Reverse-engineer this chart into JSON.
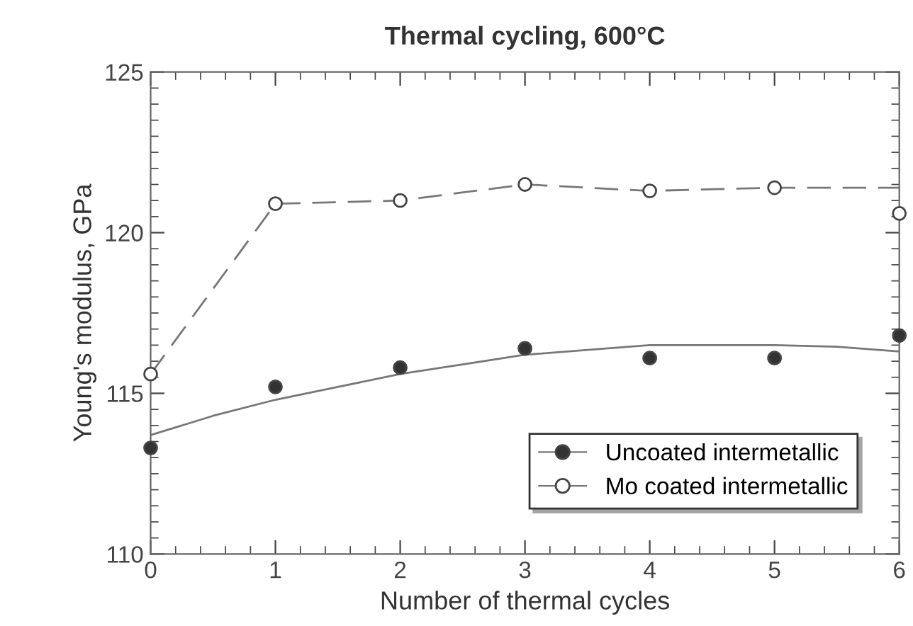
{
  "chart_data": {
    "type": "scatter",
    "title": "Thermal cycling, 600°C",
    "xlabel": "Number of thermal cycles",
    "ylabel": "Young's modulus, GPa",
    "x": [
      0,
      1,
      2,
      3,
      4,
      5,
      6
    ],
    "series": [
      {
        "name": "Uncoated intermetallic",
        "color": "#333333",
        "marker": "circle",
        "values": [
          113.3,
          115.2,
          115.8,
          116.4,
          116.1,
          116.1,
          116.8
        ]
      },
      {
        "name": "Mo coated intermetallic",
        "color": "#ffffff",
        "marker": "circle",
        "values": [
          115.6,
          120.9,
          121.0,
          121.5,
          121.3,
          121.4,
          120.6
        ]
      },
      {
        "type": "line",
        "color": "#777777",
        "line_style": "solid",
        "marker": "none",
        "x": [
          0,
          0.5,
          1,
          1.5,
          2,
          2.5,
          3,
          3.5,
          4,
          4.5,
          5,
          5.5,
          6
        ],
        "values": [
          113.7,
          114.3,
          114.8,
          115.2,
          115.6,
          115.9,
          116.2,
          116.35,
          116.5,
          116.5,
          116.5,
          116.45,
          116.3
        ]
      },
      {
        "type": "line",
        "color": "#777777",
        "line_style": "dashed",
        "marker": "none",
        "values": [
          115.6,
          120.9,
          121.0,
          121.5,
          121.3,
          121.4,
          121.4
        ]
      }
    ],
    "xlim": [
      0,
      6
    ],
    "xticks": [
      0,
      1,
      2,
      3,
      4,
      5,
      6
    ],
    "ylim": [
      110,
      125
    ],
    "yticks": [
      110,
      115,
      120,
      125
    ],
    "grid": false,
    "legend": "bottom right"
  }
}
